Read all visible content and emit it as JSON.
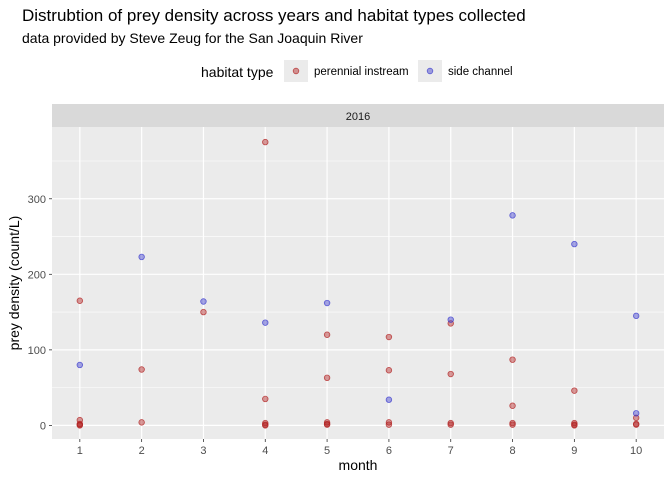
{
  "chart_data": {
    "type": "scatter",
    "title": "Distrubtion of prey density across years and habitat types collected",
    "subtitle": "data provided by Steve Zeug for the San Joaquin River",
    "facet_label": "2016",
    "xlabel": "month",
    "ylabel": "prey density (count/L)",
    "xlim": [
      0.55,
      10.45
    ],
    "ylim": [
      -18,
      395
    ],
    "x_ticks": [
      "1",
      "2",
      "3",
      "4",
      "5",
      "6",
      "7",
      "8",
      "9",
      "10"
    ],
    "y_ticks": [
      "0",
      "100",
      "200",
      "300"
    ],
    "grid": true,
    "legend": {
      "title": "habitat type",
      "position": "top"
    },
    "series": [
      {
        "name": "perennial instream",
        "color": "#b22222",
        "points": [
          [
            1,
            165
          ],
          [
            1,
            7
          ],
          [
            1,
            2
          ],
          [
            1,
            1
          ],
          [
            1,
            0
          ],
          [
            2,
            74
          ],
          [
            2,
            4
          ],
          [
            3,
            150
          ],
          [
            4,
            375
          ],
          [
            4,
            35
          ],
          [
            4,
            3
          ],
          [
            4,
            1
          ],
          [
            4,
            0
          ],
          [
            5,
            120
          ],
          [
            5,
            63
          ],
          [
            5,
            4
          ],
          [
            5,
            2
          ],
          [
            5,
            1
          ],
          [
            6,
            117
          ],
          [
            6,
            73
          ],
          [
            6,
            4
          ],
          [
            6,
            1
          ],
          [
            7,
            135
          ],
          [
            7,
            68
          ],
          [
            7,
            3
          ],
          [
            7,
            1
          ],
          [
            8,
            87
          ],
          [
            8,
            26
          ],
          [
            8,
            3
          ],
          [
            8,
            1
          ],
          [
            9,
            46
          ],
          [
            9,
            3
          ],
          [
            9,
            1
          ],
          [
            9,
            0
          ],
          [
            10,
            10
          ],
          [
            10,
            2
          ],
          [
            10,
            1
          ]
        ]
      },
      {
        "name": "side channel",
        "color": "#3a3acd",
        "points": [
          [
            1,
            80
          ],
          [
            2,
            223
          ],
          [
            3,
            164
          ],
          [
            4,
            136
          ],
          [
            5,
            162
          ],
          [
            6,
            34
          ],
          [
            7,
            140
          ],
          [
            8,
            278
          ],
          [
            9,
            240
          ],
          [
            10,
            145
          ],
          [
            10,
            16
          ]
        ]
      }
    ]
  }
}
